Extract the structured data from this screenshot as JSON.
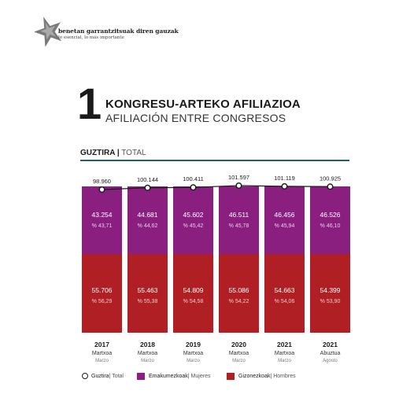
{
  "header": {
    "logo_line1": "benetan garrantzitsuak diren gauzak",
    "logo_line2": "lo esencial, lo más importante"
  },
  "heading": {
    "number": "1",
    "title_eu": "KONGRESU-ARTEKO AFILIAZIOA",
    "title_es": "AFILIACIÓN ENTRE CONGRESOS"
  },
  "section": {
    "label_bold": "GUZTIRA |",
    "label_normal": " TOTAL"
  },
  "colors": {
    "mujeres": "#8a1f80",
    "hombres": "#b01f24",
    "rule": "#1f5f6a"
  },
  "chart_data": {
    "type": "bar",
    "stacked": true,
    "categories": [
      {
        "year": "2017",
        "month_eu": "Martxoa",
        "month_es": "Marzo"
      },
      {
        "year": "2018",
        "month_eu": "Martxoa",
        "month_es": "Marzo"
      },
      {
        "year": "2019",
        "month_eu": "Martxoa",
        "month_es": "Marzo"
      },
      {
        "year": "2020",
        "month_eu": "Martxoa",
        "month_es": "Marzo"
      },
      {
        "year": "2021",
        "month_eu": "Martxoa",
        "month_es": "Marzo"
      },
      {
        "year": "2021",
        "month_eu": "Abuztua",
        "month_es": "Agosto"
      }
    ],
    "total": {
      "values": [
        98960,
        100144,
        100411,
        101597,
        101119,
        100925
      ],
      "labels": [
        "98.960",
        "100.144",
        "100.411",
        "101.597",
        "101.119",
        "100.925"
      ]
    },
    "series": [
      {
        "key": "mujeres",
        "values": [
          43254,
          44681,
          45602,
          46511,
          46456,
          46526
        ],
        "labels": [
          "43.254",
          "44.681",
          "45.602",
          "46.511",
          "46.456",
          "46.526"
        ],
        "pct": [
          "% 43,71",
          "% 44,62",
          "% 45,42",
          "% 45,78",
          "% 45,94",
          "% 46,10"
        ]
      },
      {
        "key": "hombres",
        "values": [
          55706,
          55463,
          54809,
          55086,
          54663,
          54399
        ],
        "labels": [
          "55.706",
          "55.463",
          "54.809",
          "55.086",
          "54.663",
          "54.399"
        ],
        "pct": [
          "% 56,29",
          "% 55,38",
          "% 54,58",
          "% 54,22",
          "% 54,06",
          "% 53,90"
        ]
      }
    ],
    "legend": [
      {
        "marker": "circle",
        "label_bold": "Guztira",
        "label_normal": " | Total"
      },
      {
        "marker": "square",
        "key": "mujeres",
        "label_bold": "Emakumezkoak",
        "label_normal": " | Mujeres"
      },
      {
        "marker": "square",
        "key": "hombres",
        "label_bold": "Gizonezkoak",
        "label_normal": " | Hombres"
      }
    ]
  }
}
